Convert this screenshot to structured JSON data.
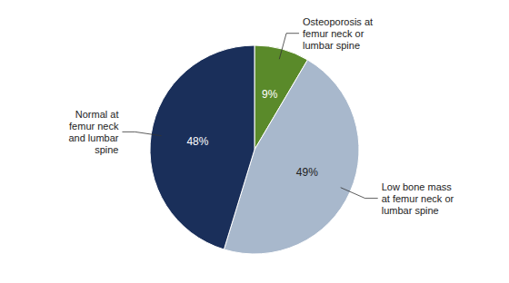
{
  "chart_data": {
    "type": "pie",
    "categories": [
      "Osteoporosis at\nfemur neck or\nlumbar spine",
      "Low bone mass\nat femur neck or\nlumbar spine",
      "Normal at\nfemur neck\nand lumbar\nspine"
    ],
    "values": [
      9,
      49,
      48
    ],
    "value_labels": [
      "9%",
      "49%",
      "48%"
    ],
    "colors": [
      "#5a8a2a",
      "#a8b8cc",
      "#1a2f5a"
    ],
    "data_labels": true
  }
}
